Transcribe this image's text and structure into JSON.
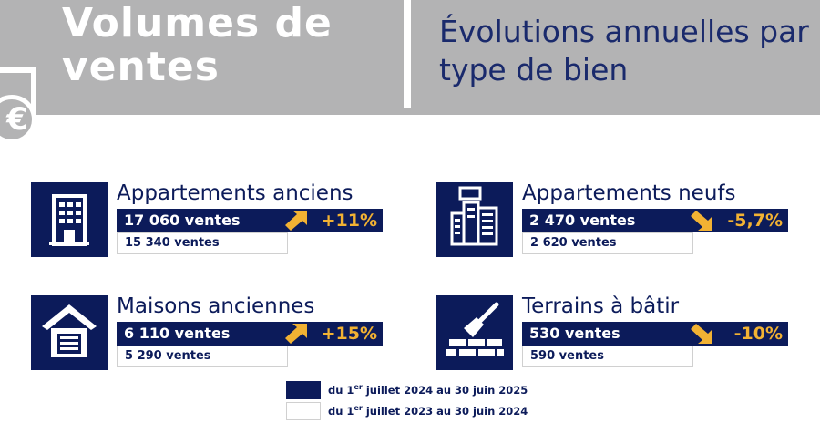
{
  "header": {
    "title_line1": "Volumes de",
    "title_line2": "ventes",
    "subtitle_line1": "Évolutions annuelles par",
    "subtitle_line2": "type de bien",
    "euro_symbol": "€"
  },
  "cards": [
    {
      "title": "Appartements anciens",
      "current": "17 060 ventes",
      "previous": "15 340 ventes",
      "change": "+11%",
      "trend": "up",
      "icon": "apartment-building-icon"
    },
    {
      "title": "Appartements neufs",
      "current": "2 470 ventes",
      "previous": "2 620 ventes",
      "change": "-5,7%",
      "trend": "down",
      "icon": "new-buildings-icon"
    },
    {
      "title": "Maisons anciennes",
      "current": "6 110 ventes",
      "previous": "5 290 ventes",
      "change": "+15%",
      "trend": "up",
      "icon": "house-garage-icon"
    },
    {
      "title": "Terrains à bâtir",
      "current": "530 ventes",
      "previous": "590 ventes",
      "change": "-10%",
      "trend": "down",
      "icon": "trowel-bricks-icon"
    }
  ],
  "legend": {
    "current_prefix": "du 1",
    "current_sup": "er",
    "current_suffix": " juillet 2024 au 30 juin 2025",
    "previous_prefix": "du 1",
    "previous_sup": "er",
    "previous_suffix": " juillet 2023 au 30 juin 2024"
  },
  "colors": {
    "navy": "#0c1b5a",
    "gold": "#f2b233",
    "header_gray": "#b3b3b4"
  }
}
